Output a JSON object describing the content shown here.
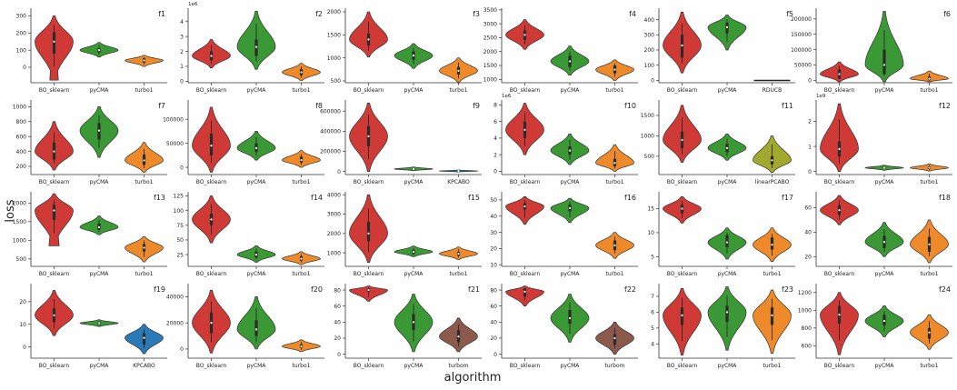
{
  "figure": {
    "xlabel": "algorithm",
    "ylabel": "loss"
  },
  "colors": {
    "BO_sklearn": "#d03a36",
    "pyCMA": "#3b9935",
    "turbo1": "#ef8a2a",
    "RDUCB": "#6b6b6b",
    "KPCABO": "#2a7ab8",
    "linearPCABO": "#a3a82e",
    "turbom": "#8c5a4d"
  },
  "chart_data": [
    {
      "type": "violin",
      "title": "f1",
      "exp": "",
      "categories": [
        "BO_sklearn",
        "pyCMA",
        "turbo1"
      ],
      "yticks": [
        0,
        100,
        200,
        300
      ],
      "ylim": [
        -90,
        345
      ],
      "violins": [
        {
          "center": 150,
          "lo": -75,
          "hi": 300,
          "q1": 80,
          "q3": 205,
          "skew": 0.25
        },
        {
          "center": 100,
          "lo": 60,
          "hi": 145,
          "q1": 88,
          "q3": 110,
          "skew": 0
        },
        {
          "center": 40,
          "lo": 5,
          "hi": 70,
          "q1": 28,
          "q3": 52,
          "skew": 0
        }
      ]
    },
    {
      "type": "violin",
      "title": "f2",
      "exp": "1e6",
      "categories": [
        "BO_sklearn",
        "pyCMA",
        "turbo1"
      ],
      "yticks": [
        0,
        1,
        2,
        3,
        4
      ],
      "ylim": [
        -0.1,
        4.9
      ],
      "violins": [
        {
          "center": 1.7,
          "lo": 0.9,
          "hi": 2.8,
          "q1": 1.4,
          "q3": 2.0,
          "skew": 0
        },
        {
          "center": 2.3,
          "lo": 0.8,
          "hi": 4.7,
          "q1": 1.7,
          "q3": 2.8,
          "skew": 0
        },
        {
          "center": 0.6,
          "lo": 0.05,
          "hi": 1.2,
          "q1": 0.4,
          "q3": 0.8,
          "skew": 0
        }
      ]
    },
    {
      "type": "violin",
      "title": "f3",
      "exp": "",
      "categories": [
        "BO_sklearn",
        "pyCMA",
        "turbo1"
      ],
      "yticks": [
        500,
        1000,
        1500,
        2000
      ],
      "ylim": [
        460,
        2080
      ],
      "violins": [
        {
          "center": 1400,
          "lo": 1020,
          "hi": 2000,
          "q1": 1270,
          "q3": 1530,
          "skew": 0
        },
        {
          "center": 1050,
          "lo": 770,
          "hi": 1310,
          "q1": 960,
          "q3": 1140,
          "skew": 0
        },
        {
          "center": 720,
          "lo": 470,
          "hi": 1000,
          "q1": 640,
          "q3": 800,
          "skew": 0
        }
      ]
    },
    {
      "type": "violin",
      "title": "f4",
      "exp": "",
      "categories": [
        "BO_sklearn",
        "pyCMA",
        "turbo1"
      ],
      "yticks": [
        1000,
        1500,
        2000,
        2500,
        3000,
        3500
      ],
      "ylim": [
        880,
        3560
      ],
      "violins": [
        {
          "center": 2600,
          "lo": 2080,
          "hi": 3150,
          "q1": 2420,
          "q3": 2760,
          "skew": 0
        },
        {
          "center": 1650,
          "lo": 1150,
          "hi": 2200,
          "q1": 1450,
          "q3": 1850,
          "skew": 0
        },
        {
          "center": 1350,
          "lo": 960,
          "hi": 1700,
          "q1": 1220,
          "q3": 1500,
          "skew": 0
        }
      ]
    },
    {
      "type": "violin",
      "title": "f5",
      "exp": "",
      "categories": [
        "BO_sklearn",
        "pyCMA",
        "RDUCB"
      ],
      "yticks": [
        0,
        100,
        200,
        300,
        400
      ],
      "ylim": [
        -15,
        475
      ],
      "violins": [
        {
          "center": 230,
          "lo": 50,
          "hi": 450,
          "q1": 150,
          "q3": 300,
          "skew": 0
        },
        {
          "center": 350,
          "lo": 200,
          "hi": 430,
          "q1": 310,
          "q3": 380,
          "skew": 0
        },
        {
          "center": 0,
          "lo": -3,
          "hi": 3,
          "q1": -1,
          "q3": 1,
          "skew": 0,
          "flat": true
        }
      ]
    },
    {
      "type": "violin",
      "title": "f6",
      "exp": "",
      "categories": [
        "BO_sklearn",
        "pyCMA",
        "turbo1"
      ],
      "yticks": [
        0,
        50000,
        100000,
        150000,
        200000
      ],
      "ylim": [
        -8000,
        235000
      ],
      "violins": [
        {
          "center": 20000,
          "lo": -5000,
          "hi": 60000,
          "q1": 5000,
          "q3": 35000,
          "skew": 0
        },
        {
          "center": 50000,
          "lo": -5000,
          "hi": 225000,
          "q1": 20000,
          "q3": 100000,
          "skew": -0.35
        },
        {
          "center": 5000,
          "lo": -5000,
          "hi": 30000,
          "q1": 0,
          "q3": 12000,
          "skew": -0.4
        }
      ]
    },
    {
      "type": "violin",
      "title": "f7",
      "exp": "",
      "categories": [
        "BO_sklearn",
        "pyCMA",
        "turbo1"
      ],
      "yticks": [
        200,
        400,
        600,
        800,
        1000
      ],
      "ylim": [
        90,
        1090
      ],
      "violins": [
        {
          "center": 400,
          "lo": 150,
          "hi": 800,
          "q1": 290,
          "q3": 520,
          "skew": 0
        },
        {
          "center": 680,
          "lo": 320,
          "hi": 1000,
          "q1": 560,
          "q3": 780,
          "skew": 0
        },
        {
          "center": 280,
          "lo": 120,
          "hi": 520,
          "q1": 220,
          "q3": 360,
          "skew": 0
        }
      ]
    },
    {
      "type": "violin",
      "title": "f8",
      "exp": "",
      "categories": [
        "BO_sklearn",
        "pyCMA",
        "turbo1"
      ],
      "yticks": [
        0,
        50000,
        100000
      ],
      "ylim": [
        -15000,
        140000
      ],
      "violins": [
        {
          "center": 45000,
          "lo": -10000,
          "hi": 125000,
          "q1": 25000,
          "q3": 70000,
          "skew": 0
        },
        {
          "center": 40000,
          "lo": 15000,
          "hi": 75000,
          "q1": 32000,
          "q3": 50000,
          "skew": 0
        },
        {
          "center": 15000,
          "lo": 0,
          "hi": 35000,
          "q1": 10000,
          "q3": 22000,
          "skew": 0
        }
      ]
    },
    {
      "type": "violin",
      "title": "f9",
      "exp": "",
      "categories": [
        "BO_sklearn",
        "pyCMA",
        "KPCABO"
      ],
      "yticks": [
        0,
        200000,
        400000,
        600000
      ],
      "ylim": [
        -30000,
        710000
      ],
      "violins": [
        {
          "center": 350000,
          "lo": 0,
          "hi": 680000,
          "q1": 250000,
          "q3": 450000,
          "skew": 0
        },
        {
          "center": 25000,
          "lo": 8000,
          "hi": 45000,
          "q1": 18000,
          "q3": 32000,
          "skew": 0
        },
        {
          "center": 5000,
          "lo": -4000,
          "hi": 15000,
          "q1": 2000,
          "q3": 8000,
          "skew": 0
        }
      ]
    },
    {
      "type": "violin",
      "title": "f10",
      "exp": "1e6",
      "categories": [
        "BO_sklearn",
        "pyCMA",
        "turbo1"
      ],
      "yticks": [
        0,
        2,
        4,
        6,
        8
      ],
      "ylim": [
        -0.4,
        8.6
      ],
      "violins": [
        {
          "center": 5.0,
          "lo": 2.0,
          "hi": 8.2,
          "q1": 4.0,
          "q3": 6.0,
          "skew": 0
        },
        {
          "center": 2.5,
          "lo": 0.8,
          "hi": 4.5,
          "q1": 2.0,
          "q3": 3.0,
          "skew": 0
        },
        {
          "center": 1.0,
          "lo": 0.0,
          "hi": 3.2,
          "q1": 0.6,
          "q3": 1.5,
          "skew": 0
        }
      ]
    },
    {
      "type": "violin",
      "title": "f11",
      "exp": "",
      "categories": [
        "BO_sklearn",
        "pyCMA",
        "linearPCABO"
      ],
      "yticks": [
        500,
        1000,
        1500
      ],
      "ylim": [
        50,
        1880
      ],
      "violins": [
        {
          "center": 900,
          "lo": 350,
          "hi": 1750,
          "q1": 700,
          "q3": 1100,
          "skew": 0
        },
        {
          "center": 700,
          "lo": 400,
          "hi": 1050,
          "q1": 600,
          "q3": 800,
          "skew": 0
        },
        {
          "center": 400,
          "lo": 100,
          "hi": 1000,
          "q1": 300,
          "q3": 500,
          "skew": 0
        }
      ]
    },
    {
      "type": "violin",
      "title": "f12",
      "exp": "1e9",
      "categories": [
        "BO_sklearn",
        "pyCMA",
        "turbo1"
      ],
      "yticks": [
        0,
        1,
        2
      ],
      "ylim": [
        -0.12,
        2.85
      ],
      "violins": [
        {
          "center": 0.9,
          "lo": 0.0,
          "hi": 2.7,
          "q1": 0.6,
          "q3": 1.2,
          "skew": 0
        },
        {
          "center": 0.15,
          "lo": 0.05,
          "hi": 0.25,
          "q1": 0.12,
          "q3": 0.18,
          "skew": 0
        },
        {
          "center": 0.15,
          "lo": 0.02,
          "hi": 0.3,
          "q1": 0.1,
          "q3": 0.2,
          "skew": 0
        }
      ]
    },
    {
      "type": "violin",
      "title": "f13",
      "exp": "",
      "categories": [
        "BO_sklearn",
        "pyCMA",
        "turbo1"
      ],
      "yticks": [
        500,
        1000,
        1500,
        2000
      ],
      "ylim": [
        300,
        2300
      ],
      "violins": [
        {
          "center": 1800,
          "lo": 850,
          "hi": 2250,
          "q1": 1550,
          "q3": 1950,
          "skew": 0.3
        },
        {
          "center": 1350,
          "lo": 1150,
          "hi": 1650,
          "q1": 1280,
          "q3": 1450,
          "skew": 0
        },
        {
          "center": 800,
          "lo": 420,
          "hi": 1100,
          "q1": 700,
          "q3": 900,
          "skew": 0
        }
      ]
    },
    {
      "type": "violin",
      "title": "f14",
      "exp": "",
      "categories": [
        "BO_sklearn",
        "pyCMA",
        "turbo1"
      ],
      "yticks": [
        25,
        50,
        75,
        100,
        125
      ],
      "ylim": [
        5,
        132
      ],
      "violins": [
        {
          "center": 85,
          "lo": 45,
          "hi": 125,
          "q1": 75,
          "q3": 95,
          "skew": 0
        },
        {
          "center": 25,
          "lo": 12,
          "hi": 40,
          "q1": 20,
          "q3": 30,
          "skew": 0
        },
        {
          "center": 18,
          "lo": 8,
          "hi": 30,
          "q1": 15,
          "q3": 22,
          "skew": 0
        }
      ]
    },
    {
      "type": "violin",
      "title": "f15",
      "exp": "",
      "categories": [
        "BO_sklearn",
        "pyCMA",
        "turbo1"
      ],
      "yticks": [
        1000,
        2000,
        3000,
        4000
      ],
      "ylim": [
        300,
        4150
      ],
      "violins": [
        {
          "center": 2000,
          "lo": 500,
          "hi": 4000,
          "q1": 1600,
          "q3": 2600,
          "skew": 0
        },
        {
          "center": 1050,
          "lo": 800,
          "hi": 1350,
          "q1": 950,
          "q3": 1150,
          "skew": 0
        },
        {
          "center": 950,
          "lo": 650,
          "hi": 1300,
          "q1": 850,
          "q3": 1050,
          "skew": 0
        }
      ]
    },
    {
      "type": "violin",
      "title": "f16",
      "exp": "",
      "categories": [
        "BO_sklearn",
        "pyCMA",
        "turbo1"
      ],
      "yticks": [
        10,
        20,
        30,
        40,
        50
      ],
      "ylim": [
        9,
        55
      ],
      "violins": [
        {
          "center": 46,
          "lo": 35,
          "hi": 52,
          "q1": 44,
          "q3": 48,
          "skew": 0
        },
        {
          "center": 45,
          "lo": 36,
          "hi": 51,
          "q1": 43,
          "q3": 47,
          "skew": 0
        },
        {
          "center": 22,
          "lo": 14,
          "hi": 30,
          "q1": 19,
          "q3": 25,
          "skew": 0
        }
      ]
    },
    {
      "type": "violin",
      "title": "f17",
      "exp": "",
      "categories": [
        "BO_sklearn",
        "pyCMA",
        "turbo1"
      ],
      "yticks": [
        5,
        10,
        15
      ],
      "ylim": [
        3,
        18.5
      ],
      "violins": [
        {
          "center": 15,
          "lo": 12,
          "hi": 17.5,
          "q1": 14,
          "q3": 15.8,
          "skew": 0
        },
        {
          "center": 8,
          "lo": 4.5,
          "hi": 11,
          "q1": 7,
          "q3": 9.5,
          "skew": 0
        },
        {
          "center": 7.5,
          "lo": 4,
          "hi": 11,
          "q1": 6.5,
          "q3": 9,
          "skew": 0
        }
      ]
    },
    {
      "type": "violin",
      "title": "f18",
      "exp": "",
      "categories": [
        "BO_sklearn",
        "pyCMA",
        "turbo1"
      ],
      "yticks": [
        20,
        40,
        60
      ],
      "ylim": [
        12,
        73
      ],
      "violins": [
        {
          "center": 58,
          "lo": 46,
          "hi": 70,
          "q1": 54,
          "q3": 62,
          "skew": 0
        },
        {
          "center": 32,
          "lo": 20,
          "hi": 48,
          "q1": 27,
          "q3": 37,
          "skew": 0
        },
        {
          "center": 30,
          "lo": 15,
          "hi": 50,
          "q1": 24,
          "q3": 36,
          "skew": 0
        }
      ]
    },
    {
      "type": "violin",
      "title": "f19",
      "exp": "",
      "categories": [
        "BO_sklearn",
        "pyCMA",
        "KPCABO"
      ],
      "yticks": [
        0,
        10,
        20
      ],
      "ylim": [
        -5,
        28
      ],
      "violins": [
        {
          "center": 14,
          "lo": 5,
          "hi": 25,
          "q1": 11,
          "q3": 17,
          "skew": 0
        },
        {
          "center": 10.5,
          "lo": 9,
          "hi": 12,
          "q1": 10,
          "q3": 11,
          "skew": 0
        },
        {
          "center": 4,
          "lo": -3,
          "hi": 10,
          "q1": 1,
          "q3": 6,
          "skew": 0
        }
      ]
    },
    {
      "type": "violin",
      "title": "f20",
      "exp": "",
      "categories": [
        "BO_sklearn",
        "pyCMA",
        "turbo1"
      ],
      "yticks": [
        0,
        20000,
        40000
      ],
      "ylim": [
        -7000,
        50000
      ],
      "violins": [
        {
          "center": 20000,
          "lo": -3000,
          "hi": 45000,
          "q1": 12000,
          "q3": 28000,
          "skew": 0
        },
        {
          "center": 15000,
          "lo": 0,
          "hi": 40000,
          "q1": 10000,
          "q3": 22000,
          "skew": 0
        },
        {
          "center": 2000,
          "lo": -2000,
          "hi": 7000,
          "q1": 1000,
          "q3": 3500,
          "skew": 0
        }
      ]
    },
    {
      "type": "violin",
      "title": "f21",
      "exp": "",
      "categories": [
        "BO_sklearn",
        "pyCMA",
        "turbom"
      ],
      "yticks": [
        0,
        20,
        40,
        60,
        80
      ],
      "ylim": [
        -5,
        88
      ],
      "violins": [
        {
          "center": 80,
          "lo": 66,
          "hi": 85,
          "q1": 78,
          "q3": 82,
          "skew": 0
        },
        {
          "center": 40,
          "lo": 3,
          "hi": 75,
          "q1": 30,
          "q3": 50,
          "skew": 0
        },
        {
          "center": 22,
          "lo": 3,
          "hi": 45,
          "q1": 15,
          "q3": 30,
          "skew": 0
        }
      ]
    },
    {
      "type": "violin",
      "title": "f22",
      "exp": "",
      "categories": [
        "BO_sklearn",
        "pyCMA",
        "turbom"
      ],
      "yticks": [
        0,
        20,
        40,
        60,
        80
      ],
      "ylim": [
        -5,
        88
      ],
      "violins": [
        {
          "center": 78,
          "lo": 60,
          "hi": 85,
          "q1": 72,
          "q3": 82,
          "skew": 0
        },
        {
          "center": 45,
          "lo": 15,
          "hi": 75,
          "q1": 38,
          "q3": 55,
          "skew": 0
        },
        {
          "center": 20,
          "lo": 0,
          "hi": 40,
          "q1": 12,
          "q3": 25,
          "skew": 0
        }
      ]
    },
    {
      "type": "violin",
      "title": "f23",
      "exp": "",
      "categories": [
        "BO_sklearn",
        "pyCMA",
        "turbo1"
      ],
      "yticks": [
        4,
        5,
        6,
        7
      ],
      "ylim": [
        3.1,
        7.8
      ],
      "violins": [
        {
          "center": 5.8,
          "lo": 3.3,
          "hi": 7.5,
          "q1": 5.2,
          "q3": 6.3,
          "skew": 0
        },
        {
          "center": 6.0,
          "lo": 3.6,
          "hi": 7.6,
          "q1": 5.4,
          "q3": 6.4,
          "skew": 0
        },
        {
          "center": 5.8,
          "lo": 3.4,
          "hi": 7.4,
          "q1": 5.2,
          "q3": 6.3,
          "skew": 0
        }
      ]
    },
    {
      "type": "violin",
      "title": "f24",
      "exp": "",
      "categories": [
        "BO_sklearn",
        "pyCMA",
        "turbo1"
      ],
      "yticks": [
        600,
        800,
        1000,
        1200
      ],
      "ylim": [
        460,
        1300
      ],
      "violins": [
        {
          "center": 950,
          "lo": 500,
          "hi": 1200,
          "q1": 850,
          "q3": 1050,
          "skew": 0
        },
        {
          "center": 880,
          "lo": 700,
          "hi": 1050,
          "q1": 830,
          "q3": 950,
          "skew": 0
        },
        {
          "center": 750,
          "lo": 560,
          "hi": 950,
          "q1": 680,
          "q3": 800,
          "skew": 0
        }
      ]
    }
  ]
}
